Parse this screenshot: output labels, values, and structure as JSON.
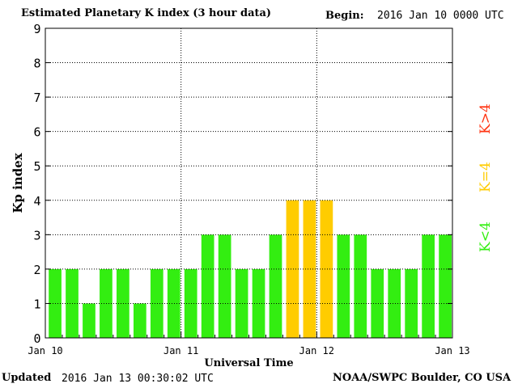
{
  "header": {
    "title": "Estimated Planetary K index (3 hour data)",
    "begin_label": "Begin:",
    "begin_value": "2016 Jan 10 0000 UTC"
  },
  "footer": {
    "updated_label": "Updated",
    "updated_value": "2016 Jan 13 00:30:02 UTC",
    "source": "NOAA/SWPC Boulder, CO USA"
  },
  "legend": [
    {
      "label": "K<4",
      "color": "#33ee11"
    },
    {
      "label": "K=4",
      "color": "#ffcc00"
    },
    {
      "label": "K>4",
      "color": "#ff3311"
    }
  ],
  "chart_data": {
    "type": "bar",
    "title": "Estimated Planetary K index (3 hour data)",
    "xlabel": "Universal Time",
    "ylabel": "Kp index",
    "ylim": [
      0,
      9
    ],
    "yticks": [
      0,
      1,
      2,
      3,
      4,
      5,
      6,
      7,
      8,
      9
    ],
    "xticks": [
      "Jan 10",
      "Jan 11",
      "Jan 12",
      "Jan 13"
    ],
    "grid": true,
    "values": [
      2,
      2,
      1,
      2,
      2,
      1,
      2,
      2,
      2,
      3,
      3,
      2,
      2,
      3,
      4,
      4,
      4,
      3,
      3,
      2,
      2,
      2,
      3,
      3
    ],
    "colors": {
      "below": "#33ee11",
      "equal": "#ffcc00",
      "above": "#ff3311"
    }
  }
}
